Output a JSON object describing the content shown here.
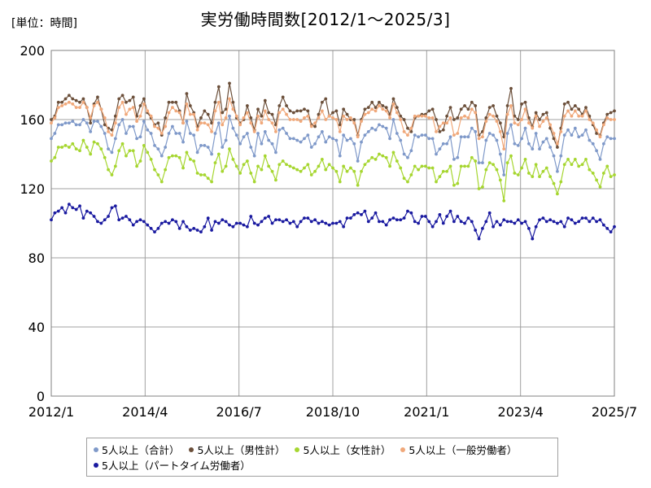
{
  "unit_label": "[単位：時間]",
  "chart_data": {
    "type": "line",
    "title": "実労働時間数[2012/1～2025/3]",
    "xlabel": "",
    "ylabel": "",
    "ylim": [
      0,
      200
    ],
    "yticks": [
      0,
      40,
      80,
      120,
      160,
      200
    ],
    "xticks": [
      "2012/1",
      "2014/4",
      "2016/7",
      "2018/10",
      "2021/1",
      "2023/4",
      "2025/7"
    ],
    "x_start": "2012/1",
    "months": 159,
    "grid": true,
    "legend_position": "bottom",
    "series": [
      {
        "name": "5人以上（合計）",
        "color": "#7f99c9",
        "values": [
          149,
          152,
          157,
          157,
          158,
          158,
          159,
          157,
          157,
          160,
          158,
          153,
          159,
          159,
          156,
          152,
          143,
          141,
          149,
          157,
          160,
          152,
          156,
          156,
          149,
          150,
          159,
          154,
          152,
          145,
          143,
          139,
          144,
          152,
          156,
          152,
          152,
          147,
          159,
          152,
          151,
          141,
          145,
          145,
          144,
          140,
          152,
          158,
          144,
          148,
          162,
          155,
          151,
          146,
          150,
          152,
          144,
          139,
          152,
          146,
          153,
          148,
          146,
          141,
          154,
          155,
          152,
          149,
          149,
          148,
          147,
          149,
          151,
          144,
          146,
          150,
          153,
          147,
          150,
          149,
          148,
          139,
          151,
          148,
          149,
          146,
          136,
          147,
          151,
          153,
          155,
          154,
          157,
          156,
          155,
          149,
          160,
          152,
          148,
          140,
          138,
          142,
          151,
          150,
          151,
          151,
          149,
          149,
          140,
          143,
          146,
          146,
          150,
          137,
          138,
          150,
          150,
          150,
          155,
          153,
          135,
          135,
          148,
          152,
          151,
          148,
          140,
          128,
          152,
          157,
          146,
          145,
          149,
          155,
          146,
          143,
          152,
          143,
          147,
          149,
          144,
          139,
          130,
          139,
          151,
          154,
          151,
          155,
          150,
          151,
          154,
          148,
          146,
          142,
          137,
          146,
          150,
          149,
          149
        ]
      },
      {
        "name": "5人以上（男性計）",
        "color": "#6b4f3a",
        "values": [
          160,
          162,
          170,
          170,
          172,
          174,
          172,
          171,
          170,
          172,
          167,
          158,
          169,
          173,
          166,
          157,
          155,
          154,
          162,
          172,
          174,
          170,
          171,
          173,
          162,
          168,
          172,
          164,
          161,
          157,
          158,
          151,
          161,
          170,
          170,
          170,
          165,
          158,
          175,
          168,
          164,
          156,
          161,
          165,
          163,
          158,
          170,
          179,
          164,
          166,
          181,
          170,
          161,
          158,
          160,
          168,
          161,
          154,
          166,
          162,
          171,
          164,
          163,
          157,
          168,
          173,
          168,
          165,
          164,
          165,
          165,
          166,
          165,
          157,
          156,
          163,
          170,
          172,
          162,
          164,
          165,
          157,
          166,
          163,
          160,
          160,
          151,
          160,
          166,
          167,
          170,
          167,
          170,
          168,
          167,
          163,
          172,
          167,
          162,
          160,
          155,
          153,
          161,
          162,
          163,
          163,
          165,
          166,
          160,
          153,
          154,
          162,
          167,
          160,
          161,
          166,
          168,
          166,
          170,
          168,
          151,
          153,
          161,
          167,
          168,
          162,
          158,
          150,
          168,
          178,
          162,
          160,
          169,
          170,
          161,
          156,
          164,
          160,
          163,
          164,
          155,
          149,
          144,
          155,
          169,
          170,
          166,
          168,
          166,
          163,
          167,
          162,
          157,
          152,
          151,
          158,
          163,
          164,
          165
        ]
      },
      {
        "name": "5人以上（女性計）",
        "color": "#a6d630",
        "values": [
          136,
          138,
          144,
          144,
          145,
          144,
          146,
          143,
          142,
          148,
          144,
          140,
          147,
          146,
          143,
          138,
          131,
          128,
          133,
          142,
          146,
          139,
          142,
          142,
          133,
          136,
          145,
          141,
          137,
          131,
          128,
          124,
          131,
          138,
          139,
          139,
          138,
          132,
          141,
          137,
          136,
          129,
          128,
          128,
          126,
          124,
          135,
          140,
          130,
          133,
          143,
          137,
          133,
          129,
          134,
          136,
          129,
          124,
          133,
          131,
          139,
          133,
          130,
          125,
          134,
          136,
          134,
          133,
          132,
          131,
          130,
          132,
          134,
          128,
          130,
          133,
          137,
          131,
          134,
          132,
          130,
          124,
          133,
          130,
          132,
          130,
          122,
          130,
          134,
          136,
          138,
          137,
          140,
          139,
          138,
          133,
          141,
          136,
          132,
          126,
          124,
          128,
          133,
          131,
          133,
          133,
          132,
          132,
          124,
          127,
          130,
          130,
          133,
          122,
          123,
          133,
          133,
          133,
          138,
          136,
          120,
          121,
          131,
          135,
          134,
          131,
          125,
          113,
          135,
          139,
          129,
          128,
          132,
          137,
          129,
          127,
          134,
          127,
          130,
          132,
          127,
          123,
          117,
          124,
          134,
          137,
          134,
          137,
          133,
          134,
          137,
          131,
          129,
          125,
          121,
          129,
          133,
          127,
          128
        ]
      },
      {
        "name": "5人以上（一般労働者）",
        "color": "#f0a87a",
        "values": [
          158,
          161,
          167,
          168,
          169,
          170,
          169,
          167,
          167,
          170,
          167,
          161,
          168,
          170,
          166,
          161,
          153,
          151,
          158,
          167,
          170,
          163,
          166,
          167,
          159,
          162,
          169,
          165,
          162,
          156,
          155,
          152,
          156,
          164,
          167,
          165,
          164,
          158,
          169,
          163,
          163,
          154,
          158,
          158,
          157,
          153,
          165,
          170,
          157,
          161,
          172,
          166,
          162,
          157,
          161,
          164,
          158,
          153,
          162,
          158,
          165,
          160,
          158,
          153,
          164,
          166,
          163,
          160,
          160,
          160,
          159,
          161,
          162,
          156,
          158,
          161,
          165,
          160,
          162,
          161,
          160,
          153,
          162,
          160,
          161,
          158,
          150,
          159,
          163,
          164,
          166,
          165,
          168,
          166,
          165,
          161,
          169,
          164,
          160,
          153,
          151,
          155,
          162,
          162,
          162,
          162,
          161,
          161,
          153,
          156,
          158,
          158,
          161,
          151,
          152,
          161,
          162,
          161,
          166,
          164,
          149,
          150,
          159,
          163,
          162,
          159,
          153,
          143,
          163,
          168,
          158,
          157,
          160,
          166,
          158,
          155,
          162,
          156,
          159,
          161,
          157,
          152,
          146,
          153,
          162,
          165,
          162,
          165,
          162,
          162,
          165,
          160,
          158,
          154,
          150,
          157,
          161,
          160,
          160
        ]
      },
      {
        "name": "5人以上（パートタイム労働者）",
        "color": "#1a1aa0",
        "values": [
          102,
          106,
          107,
          109,
          106,
          111,
          109,
          108,
          110,
          103,
          107,
          106,
          104,
          101,
          100,
          102,
          104,
          109,
          110,
          102,
          103,
          104,
          102,
          99,
          101,
          102,
          101,
          99,
          97,
          95,
          97,
          100,
          101,
          100,
          102,
          101,
          97,
          101,
          98,
          96,
          97,
          96,
          95,
          98,
          103,
          96,
          101,
          100,
          102,
          101,
          99,
          98,
          100,
          100,
          99,
          98,
          104,
          100,
          99,
          101,
          103,
          104,
          100,
          102,
          102,
          101,
          102,
          100,
          101,
          98,
          101,
          103,
          103,
          101,
          102,
          100,
          101,
          100,
          99,
          100,
          100,
          101,
          98,
          103,
          103,
          105,
          106,
          105,
          107,
          101,
          103,
          106,
          101,
          101,
          99,
          102,
          103,
          102,
          102,
          103,
          107,
          106,
          101,
          100,
          104,
          104,
          101,
          98,
          101,
          105,
          100,
          104,
          107,
          101,
          104,
          101,
          100,
          103,
          101,
          96,
          91,
          97,
          101,
          106,
          98,
          101,
          99,
          102,
          101,
          101,
          100,
          102,
          100,
          101,
          97,
          91,
          98,
          102,
          103,
          101,
          102,
          101,
          100,
          101,
          98,
          103,
          102,
          100,
          101,
          103,
          103,
          101,
          103,
          101,
          102,
          99,
          97,
          95,
          98
        ]
      }
    ]
  }
}
